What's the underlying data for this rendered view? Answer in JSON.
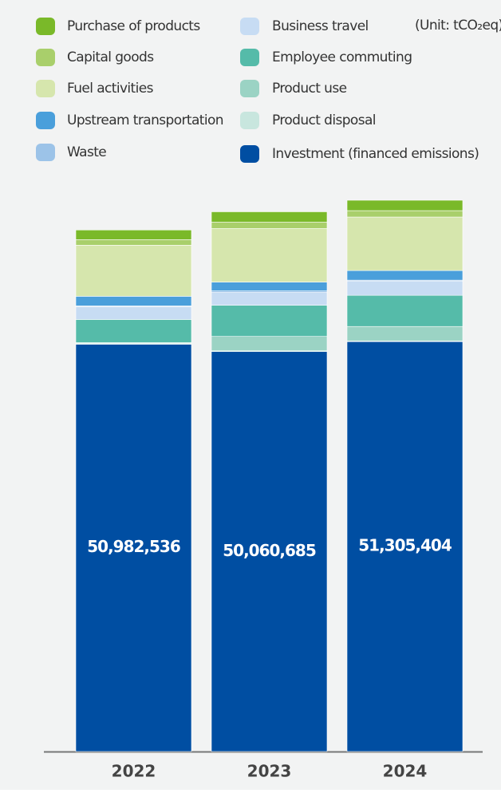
{
  "chart_data": {
    "type": "stacked-bar",
    "unit_note": "(Unit: tCO₂eq)",
    "categories": [
      "2022",
      "2023",
      "2024"
    ],
    "series": [
      {
        "name": "Purchase of products",
        "color": "#7ab929",
        "values": [
          1200000,
          1300000,
          1300000
        ]
      },
      {
        "name": "Capital goods",
        "color": "#a9cf6b",
        "values": [
          700000,
          800000,
          800000
        ]
      },
      {
        "name": "Fuel activities",
        "color": "#d6e6ad",
        "values": [
          6400000,
          6700000,
          6700000
        ]
      },
      {
        "name": "Upstream transportation",
        "color": "#4a9fdb",
        "values": [
          1200000,
          1100000,
          1200000
        ]
      },
      {
        "name": "Waste",
        "color": "#9cc3e8",
        "values": [
          100000,
          200000,
          100000
        ]
      },
      {
        "name": "Business travel",
        "color": "#c7dcf3",
        "values": [
          1600000,
          1600000,
          1800000
        ]
      },
      {
        "name": "Employee commuting",
        "color": "#55bba9",
        "values": [
          2900000,
          3900000,
          3900000
        ]
      },
      {
        "name": "Product use",
        "color": "#9bd3c4",
        "values": [
          100000,
          1800000,
          1800000
        ]
      },
      {
        "name": "Product disposal",
        "color": "#c8e6de",
        "values": [
          100000,
          100000,
          100000
        ]
      },
      {
        "name": "Investment (financed emissions)",
        "color": "#004ea2",
        "values": [
          50982536,
          50060685,
          51305404
        ],
        "value_labels": [
          "50,982,536",
          "50,060,685",
          "51,305,404"
        ]
      }
    ]
  }
}
